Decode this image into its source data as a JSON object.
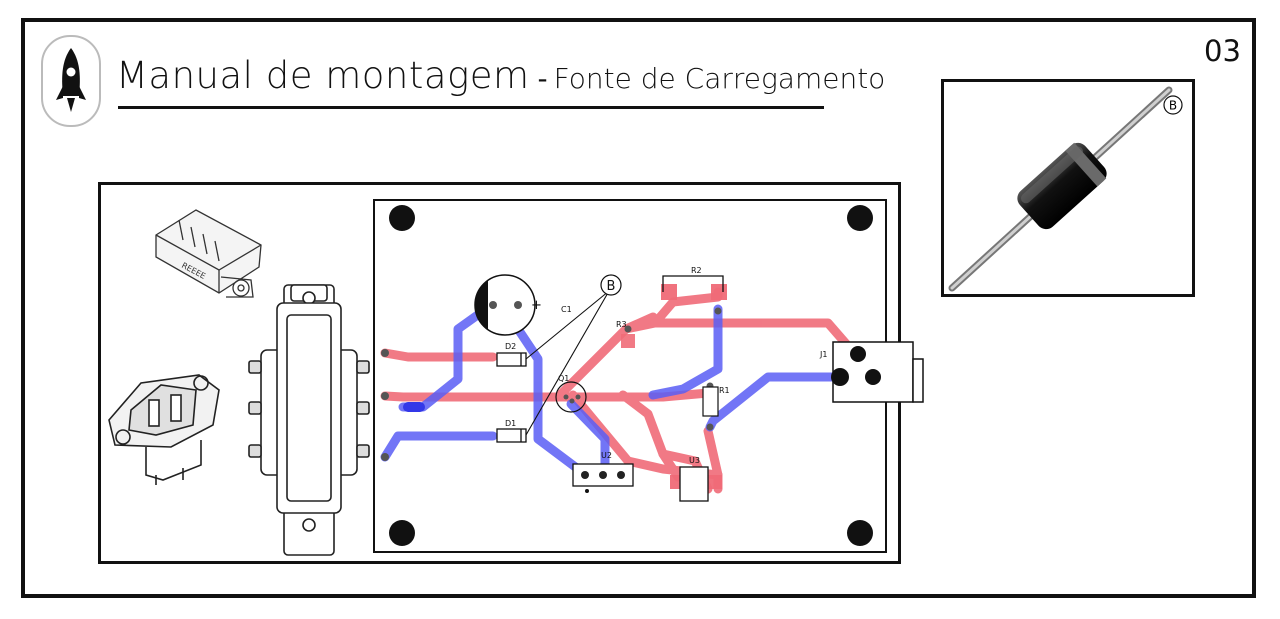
{
  "header": {
    "title_main": "Manual de montagem",
    "title_separator": "-",
    "title_sub": "Fonte de Carregamento",
    "page_number": "03"
  },
  "logo": {
    "icon": "rocket-icon"
  },
  "photo": {
    "callout_label": "B",
    "component": "diode"
  },
  "pcb": {
    "callout_label": "B",
    "component_labels": {
      "c1": "C1",
      "d2": "D2",
      "d1": "D1",
      "q1": "Q1",
      "r1": "R1",
      "r2": "R2",
      "r3": "R3",
      "u2": "U2",
      "u3": "U3",
      "j1": "J1"
    },
    "capacitor_plus": "+",
    "trace_colors": {
      "top": "#f06b78",
      "bottom": "#5a5ef5"
    }
  }
}
